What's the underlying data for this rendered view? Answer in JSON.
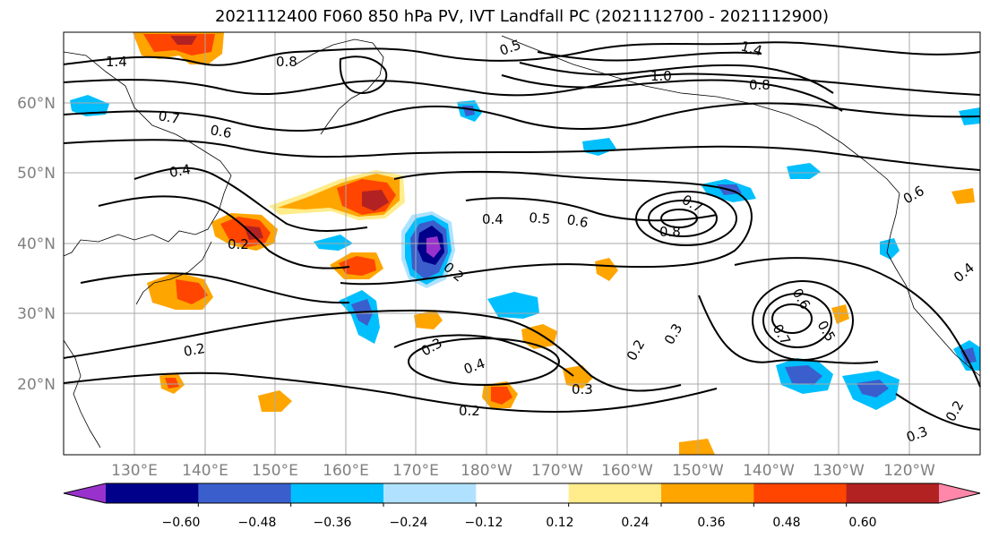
{
  "title": "2021112400 F060 850 hPa PV, IVT Landfall PC (2021112700 - 2021112900)",
  "latitude_labels": [
    "60°N",
    "50°N",
    "40°N",
    "30°N",
    "20°N"
  ],
  "longitude_labels": [
    "130°E",
    "140°E",
    "150°E",
    "160°E",
    "170°E",
    "180°W",
    "170°W",
    "160°W",
    "150°W",
    "140°W",
    "130°W",
    "120°W"
  ],
  "contour_labels": [
    {
      "text": "1.4",
      "deg": 0
    },
    {
      "text": "0.8",
      "deg": 0
    },
    {
      "text": "0.5",
      "deg": -20
    },
    {
      "text": "1.0",
      "deg": 0
    },
    {
      "text": "1.4",
      "deg": 15
    },
    {
      "text": "0.8",
      "deg": 0
    },
    {
      "text": "0.7",
      "deg": 10
    },
    {
      "text": "0.6",
      "deg": 10
    },
    {
      "text": "0.4",
      "deg": -10
    },
    {
      "text": "0.2",
      "deg": 0
    },
    {
      "text": "0.4",
      "deg": 0
    },
    {
      "text": "0.5",
      "deg": 5
    },
    {
      "text": "0.6",
      "deg": 10
    },
    {
      "text": "0.7",
      "deg": 30
    },
    {
      "text": "0.8",
      "deg": 0
    },
    {
      "text": "0.2",
      "deg": 40
    },
    {
      "text": "0.2",
      "deg": -10
    },
    {
      "text": "0.3",
      "deg": -30
    },
    {
      "text": "0.4",
      "deg": -20
    },
    {
      "text": "0.3",
      "deg": 0
    },
    {
      "text": "0.2",
      "deg": 0
    },
    {
      "text": "0.6",
      "deg": 60
    },
    {
      "text": "0.7",
      "deg": 60
    },
    {
      "text": "0.5",
      "deg": 60
    },
    {
      "text": "0.3",
      "deg": -60
    },
    {
      "text": "0.2",
      "deg": -60
    },
    {
      "text": "0.3",
      "deg": -20
    },
    {
      "text": "0.2",
      "deg": -60
    },
    {
      "text": "0.4",
      "deg": -40
    },
    {
      "text": "0.6",
      "deg": -30
    }
  ],
  "colorbar": {
    "tick_labels": [
      "−0.60",
      "−0.48",
      "−0.36",
      "−0.24",
      "−0.12",
      "0.12",
      "0.24",
      "0.36",
      "0.48",
      "0.60"
    ],
    "bins": [
      {
        "lo": null,
        "hi": -0.6,
        "color": "#9932cc"
      },
      {
        "lo": -0.6,
        "hi": -0.48,
        "color": "#00008b"
      },
      {
        "lo": -0.48,
        "hi": -0.36,
        "color": "#3a5fcd"
      },
      {
        "lo": -0.36,
        "hi": -0.24,
        "color": "#00bfff"
      },
      {
        "lo": -0.24,
        "hi": -0.12,
        "color": "#b0e2ff"
      },
      {
        "lo": -0.12,
        "hi": 0.12,
        "color": "#ffffff"
      },
      {
        "lo": 0.12,
        "hi": 0.24,
        "color": "#ffec8b"
      },
      {
        "lo": 0.24,
        "hi": 0.36,
        "color": "#ffa500"
      },
      {
        "lo": 0.36,
        "hi": 0.48,
        "color": "#ff4500"
      },
      {
        "lo": 0.48,
        "hi": 0.6,
        "color": "#b22222"
      },
      {
        "lo": 0.6,
        "hi": null,
        "color": "#ff88aa"
      }
    ]
  },
  "colors": {
    "grid": "#aaaaaa",
    "axis_label": "#808080",
    "contour": "#000000"
  }
}
